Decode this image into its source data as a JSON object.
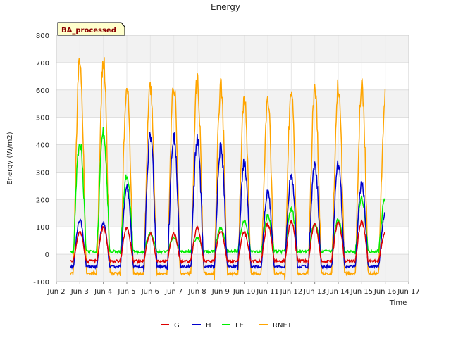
{
  "chart_data": {
    "type": "line",
    "title": "Energy",
    "xlabel": "Time",
    "ylabel": "Energy (W/m2)",
    "badge": "BA_processed",
    "ylim": [
      -100,
      800
    ],
    "yticks": [
      -100,
      0,
      100,
      200,
      300,
      400,
      500,
      600,
      700,
      800
    ],
    "xlim": [
      2,
      17
    ],
    "xticks": [
      {
        "v": 2,
        "label": "Jun 2"
      },
      {
        "v": 3,
        "label": "Jun 3"
      },
      {
        "v": 4,
        "label": "Jun 4"
      },
      {
        "v": 5,
        "label": "Jun 5"
      },
      {
        "v": 6,
        "label": "Jun 6"
      },
      {
        "v": 7,
        "label": "Jun 7"
      },
      {
        "v": 8,
        "label": "Jun 8"
      },
      {
        "v": 9,
        "label": "Jun 9"
      },
      {
        "v": 10,
        "label": "Jun 10"
      },
      {
        "v": 11,
        "label": "Jun 11"
      },
      {
        "v": 12,
        "label": "Jun 12"
      },
      {
        "v": 13,
        "label": "Jun 13"
      },
      {
        "v": 14,
        "label": "Jun 14"
      },
      {
        "v": 15,
        "label": "Jun 15"
      },
      {
        "v": 16,
        "label": "Jun 16"
      },
      {
        "v": 17,
        "label": "Jun 17"
      }
    ],
    "grid": true,
    "legend_position": "bottom",
    "x_start": 2.6,
    "x_end": 16.0,
    "days": [
      3,
      4,
      5,
      6,
      7,
      8,
      9,
      10,
      11,
      12,
      13,
      14,
      15,
      16
    ],
    "series": [
      {
        "name": "G",
        "color": "#dd0000",
        "peaks": [
          80,
          100,
          95,
          75,
          75,
          95,
          85,
          80,
          110,
          120,
          110,
          120,
          120,
          80
        ],
        "night": -25
      },
      {
        "name": "H",
        "color": "#0000cc",
        "peaks": [
          125,
          115,
          245,
          435,
          430,
          420,
          390,
          335,
          230,
          290,
          330,
          330,
          265,
          150
        ],
        "night": -45
      },
      {
        "name": "LE",
        "color": "#00ee00",
        "peaks": [
          415,
          445,
          295,
          75,
          60,
          60,
          95,
          125,
          140,
          165,
          110,
          125,
          205,
          210
        ],
        "night": 10
      },
      {
        "name": "RNET",
        "color": "#ffa500",
        "peaks": [
          705,
          705,
          610,
          610,
          615,
          630,
          610,
          570,
          560,
          590,
          600,
          620,
          615,
          575
        ],
        "night": -70
      }
    ]
  }
}
